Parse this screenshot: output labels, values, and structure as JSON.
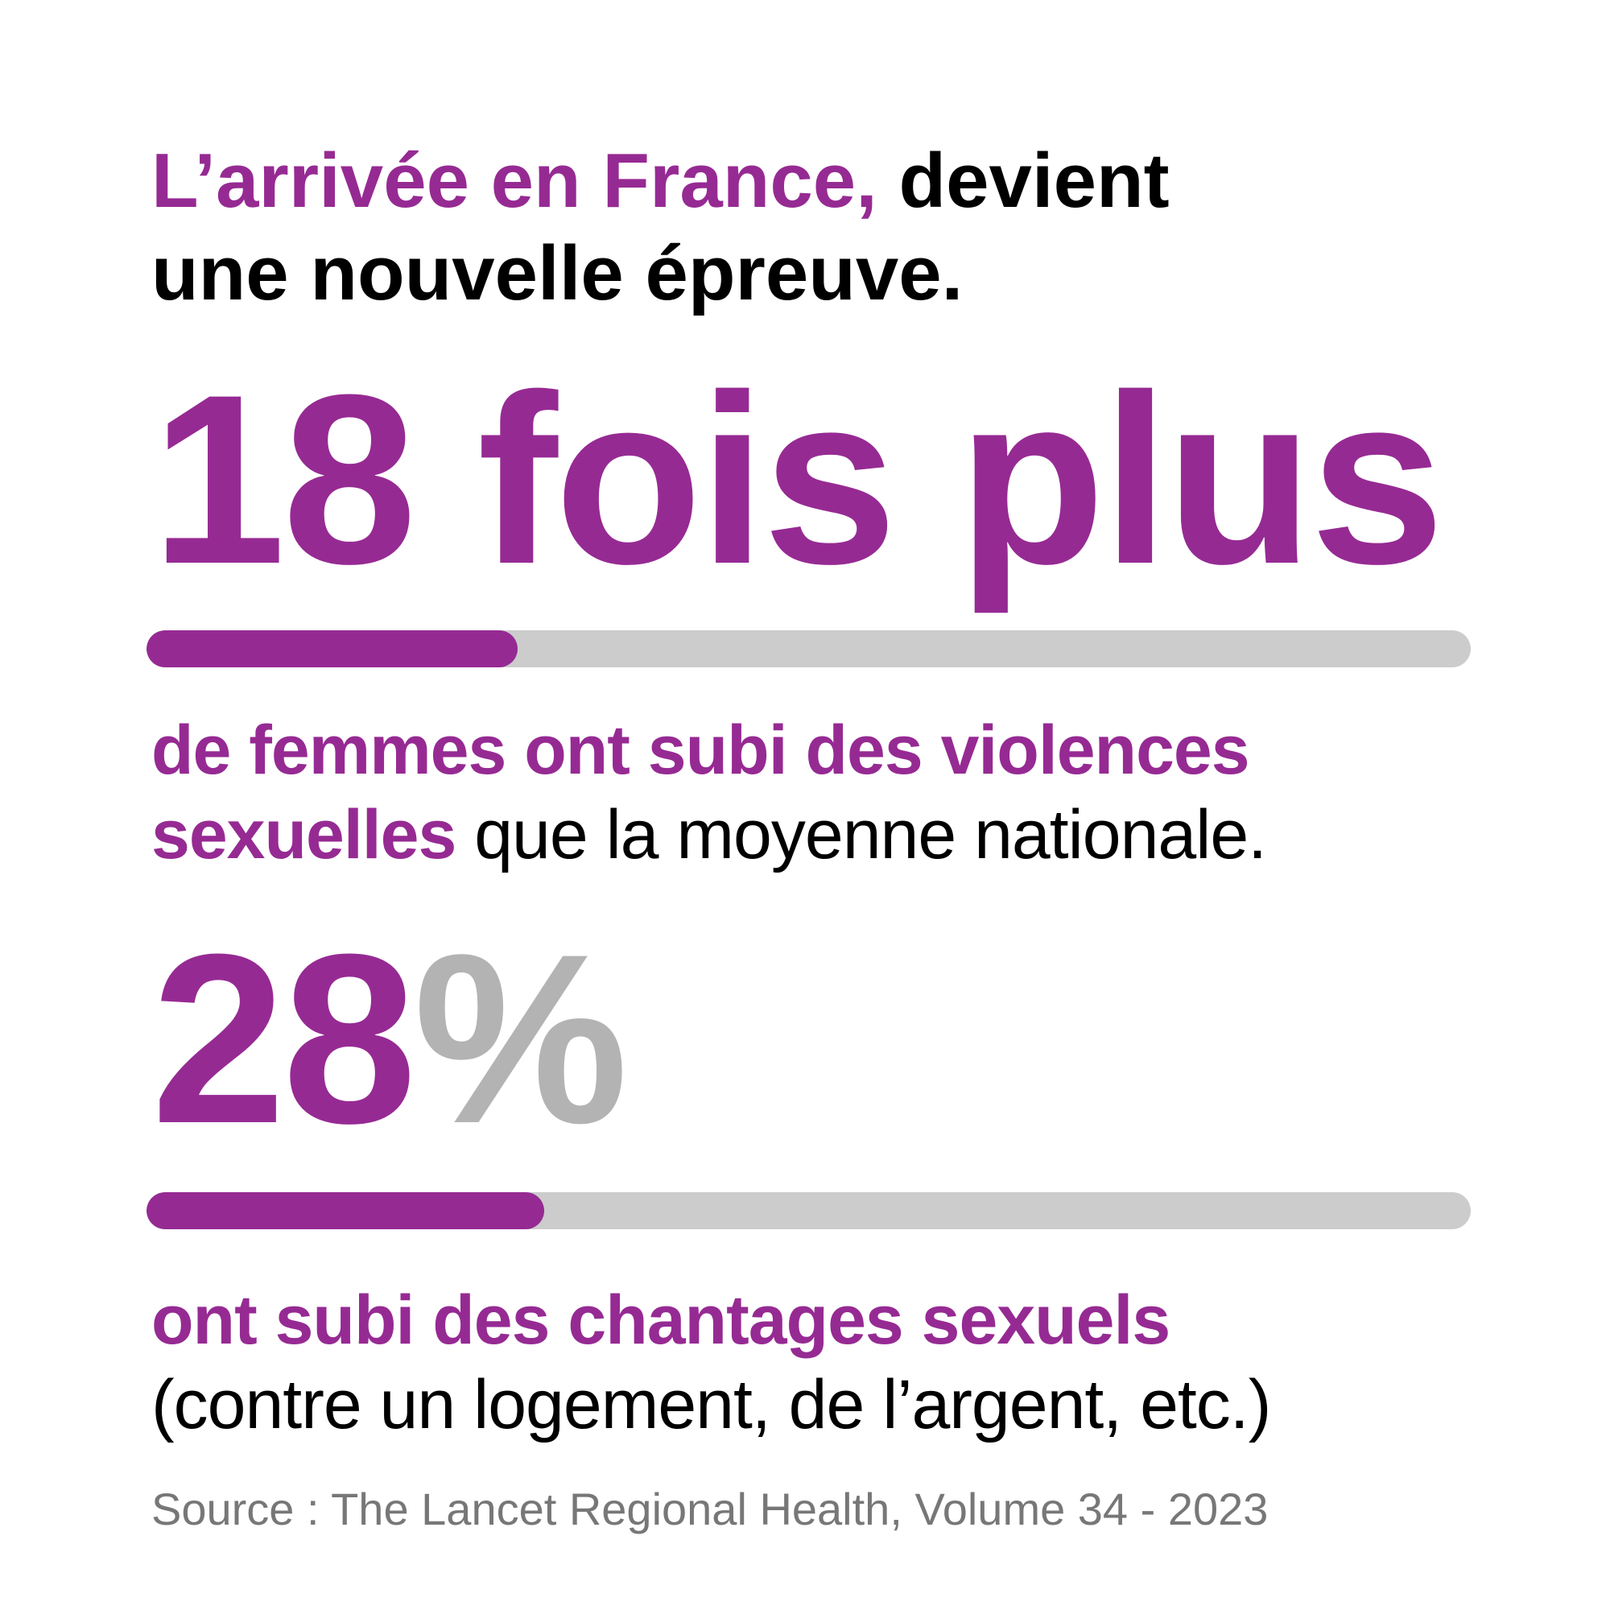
{
  "title": {
    "highlight": "L’arrivée en France,",
    "rest_line1": " devient",
    "line2": "une nouvelle épreuve."
  },
  "stat1": {
    "number": "18",
    "unit": " fois plus",
    "progress": 0.28,
    "desc_highlight_1": "de femmes ont subi des violences",
    "desc_highlight_2": "sexuelles",
    "desc_rest": " que la moyenne nationale."
  },
  "stat2": {
    "number": "28",
    "unit": "%",
    "progress": 0.3,
    "desc_highlight": "ont subi des chantages sexuels",
    "desc_rest": "(contre un logement, de l’argent, etc.)"
  },
  "source": "Source : The Lancet Regional Health, Volume 34 - 2023",
  "colors": {
    "accent": "#962a93",
    "track": "#cccccc",
    "percent": "#b3b3b3",
    "source": "#777777"
  }
}
